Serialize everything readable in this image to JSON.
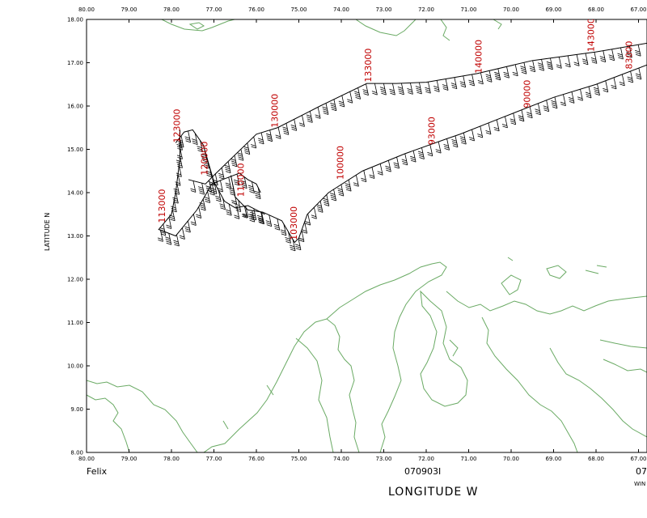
{
  "chart_data": {
    "type": "map-wind-barbs",
    "storm_name": "Felix",
    "date_code": "070903I",
    "footer_right_partial": "07",
    "footer_right_small": "WIN",
    "xlabel": "LONGITUDE   W",
    "ylabel": "LATITUDE   N",
    "xlim": [
      80.0,
      66.8
    ],
    "ylim": [
      8.0,
      18.0
    ],
    "x_ticks": [
      "80.00",
      "79.00",
      "78.00",
      "77.00",
      "76.00",
      "75.00",
      "74.00",
      "73.00",
      "72.00",
      "71.00",
      "70.00",
      "69.00",
      "68.00",
      "67.00"
    ],
    "y_ticks": [
      "8.00",
      "9.00",
      "10.00",
      "11.00",
      "12.00",
      "13.00",
      "14.00",
      "15.00",
      "16.00",
      "17.00",
      "18.00"
    ],
    "colors": {
      "track": "#000000",
      "coast": "#6aaa64",
      "labels": "#c00000"
    },
    "tracks": [
      {
        "points": [
          [
            66.8,
            17.45
          ],
          [
            68.0,
            17.25
          ],
          [
            69.5,
            17.05
          ],
          [
            70.8,
            16.75
          ],
          [
            72.0,
            16.55
          ],
          [
            72.7,
            16.52
          ],
          [
            73.4,
            16.52
          ],
          [
            74.5,
            16.0
          ],
          [
            75.5,
            15.5
          ],
          [
            76.0,
            15.35
          ],
          [
            77.0,
            14.4
          ],
          [
            77.2,
            14.2
          ],
          [
            77.6,
            14.3
          ]
        ]
      },
      {
        "points": [
          [
            77.9,
            15.15
          ],
          [
            77.7,
            15.4
          ],
          [
            77.5,
            15.45
          ],
          [
            77.25,
            15.1
          ],
          [
            77.0,
            14.25
          ],
          [
            76.75,
            13.8
          ],
          [
            76.5,
            13.65
          ],
          [
            76.2,
            13.7
          ],
          [
            75.9,
            13.55
          ],
          [
            75.8,
            13.5
          ]
        ]
      },
      {
        "points": [
          [
            77.8,
            15.45
          ],
          [
            77.8,
            14.8
          ],
          [
            77.9,
            14.0
          ],
          [
            78.0,
            13.5
          ],
          [
            78.3,
            13.15
          ],
          [
            77.9,
            13.0
          ],
          [
            77.4,
            13.6
          ],
          [
            77.05,
            14.2
          ],
          [
            76.8,
            14.3
          ],
          [
            76.4,
            14.45
          ],
          [
            76.2,
            14.3
          ],
          [
            76.0,
            14.2
          ],
          [
            75.9,
            14.0
          ]
        ]
      },
      {
        "points": [
          [
            76.6,
            14.4
          ],
          [
            76.5,
            13.9
          ],
          [
            76.2,
            13.6
          ],
          [
            75.85,
            13.55
          ],
          [
            75.4,
            13.35
          ],
          [
            75.1,
            12.85
          ],
          [
            75.0,
            12.95
          ],
          [
            74.8,
            13.5
          ],
          [
            74.3,
            14.0
          ],
          [
            73.5,
            14.5
          ],
          [
            72.5,
            14.9
          ],
          [
            71.5,
            15.25
          ],
          [
            71.2,
            15.35
          ],
          [
            70.3,
            15.7
          ],
          [
            69.0,
            16.2
          ],
          [
            68.0,
            16.5
          ],
          [
            66.8,
            16.95
          ]
        ]
      }
    ],
    "flight_labels": [
      {
        "text": "133000",
        "lon": 73.3,
        "lat": 16.55
      },
      {
        "text": "140000",
        "lon": 70.7,
        "lat": 16.75
      },
      {
        "text": "143000",
        "lon": 68.05,
        "lat": 17.25
      },
      {
        "text": "130000",
        "lon": 75.5,
        "lat": 15.5
      },
      {
        "text": "123000",
        "lon": 77.8,
        "lat": 15.15
      },
      {
        "text": "120000",
        "lon": 77.15,
        "lat": 14.4
      },
      {
        "text": "113000",
        "lon": 78.15,
        "lat": 13.3
      },
      {
        "text": "110000",
        "lon": 76.3,
        "lat": 13.9
      },
      {
        "text": "103000",
        "lon": 75.05,
        "lat": 12.9
      },
      {
        "text": "100000",
        "lon": 73.95,
        "lat": 14.3
      },
      {
        "text": "93000",
        "lon": 71.8,
        "lat": 15.1
      },
      {
        "text": "90000",
        "lon": 69.55,
        "lat": 15.95
      },
      {
        "text": "83000",
        "lon": 67.15,
        "lat": 16.85
      }
    ]
  }
}
